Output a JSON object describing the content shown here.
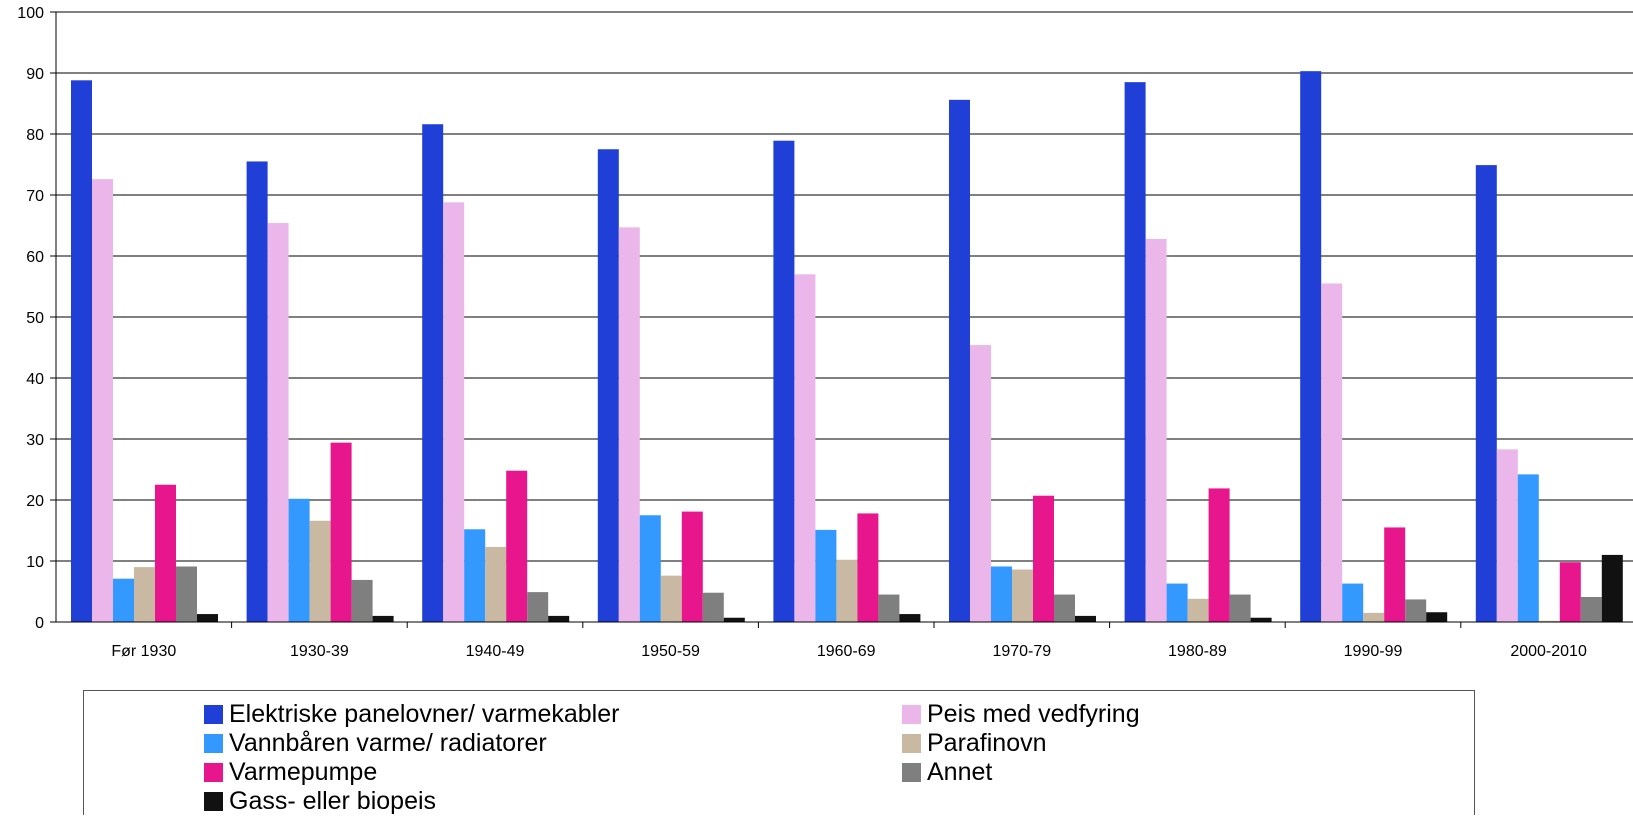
{
  "chart_data": {
    "type": "bar",
    "title": "",
    "xlabel": "",
    "ylabel": "",
    "ylim": [
      0,
      100
    ],
    "yticks": [
      0,
      10,
      20,
      30,
      40,
      50,
      60,
      70,
      80,
      90,
      100
    ],
    "grid": true,
    "legend_position": "bottom",
    "categories": [
      "Før 1930",
      "1930-39",
      "1940-49",
      "1950-59",
      "1960-69",
      "1970-79",
      "1980-89",
      "1990-99",
      "2000-2010"
    ],
    "series": [
      {
        "name": "Elektriske panelovner/ varmekabler",
        "color": "#1f3fd6",
        "values": [
          88.8,
          75.5,
          81.6,
          77.5,
          78.9,
          85.6,
          88.5,
          90.3,
          74.9
        ]
      },
      {
        "name": "Peis med vedfyring",
        "color": "#ebb7ea",
        "values": [
          72.6,
          65.4,
          68.8,
          64.7,
          57.0,
          45.4,
          62.8,
          55.5,
          28.3
        ]
      },
      {
        "name": "Vannbåren varme/ radiatorer",
        "color": "#3399ff",
        "values": [
          7.1,
          20.2,
          15.2,
          17.5,
          15.1,
          9.1,
          6.3,
          6.3,
          24.2
        ]
      },
      {
        "name": "Parafinovn",
        "color": "#c9b9a3",
        "values": [
          9.0,
          16.6,
          12.3,
          7.6,
          10.2,
          8.6,
          3.8,
          1.5,
          0.2
        ]
      },
      {
        "name": "Varmepumpe",
        "color": "#e8168c",
        "values": [
          22.5,
          29.4,
          24.8,
          18.1,
          17.8,
          20.7,
          21.9,
          15.5,
          9.8
        ]
      },
      {
        "name": "Annet",
        "color": "#7f7f7f",
        "values": [
          9.1,
          6.9,
          4.9,
          4.8,
          4.5,
          4.5,
          4.5,
          3.7,
          4.1
        ]
      },
      {
        "name": "Gass- eller biopeis",
        "color": "#111111",
        "values": [
          1.3,
          1.0,
          1.0,
          0.7,
          1.3,
          1.0,
          0.7,
          1.6,
          11.0
        ]
      }
    ]
  }
}
